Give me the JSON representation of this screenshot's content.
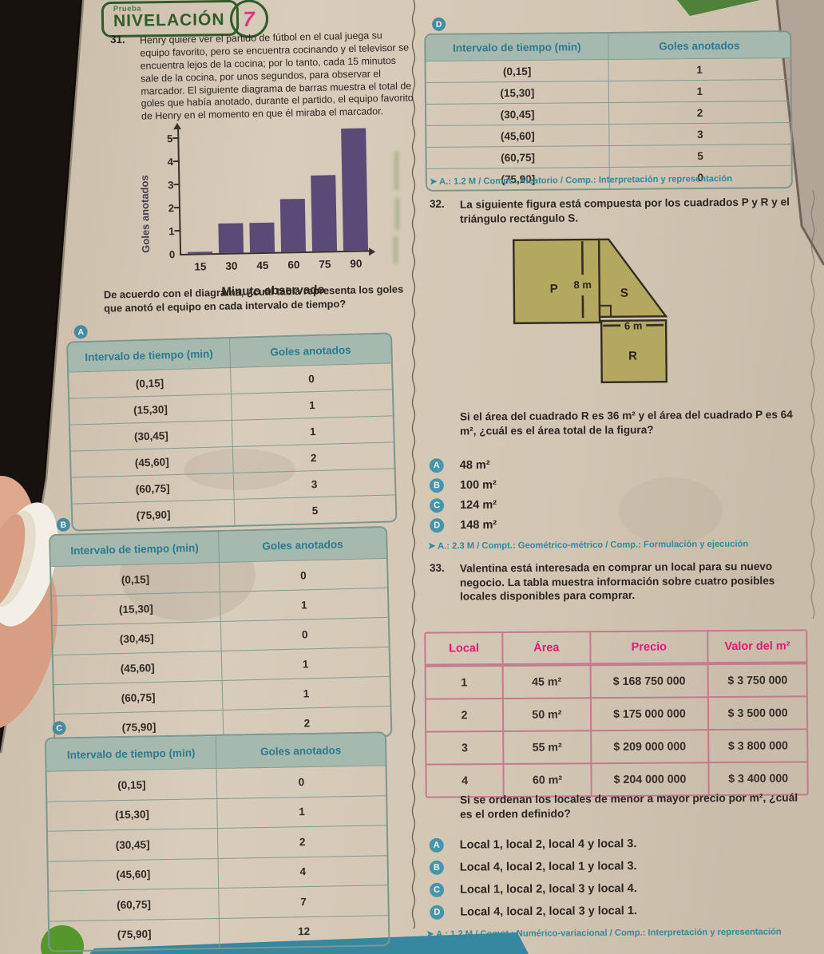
{
  "badge": {
    "kicker": "Prueba",
    "title": "NIVELACIÓN",
    "number": "7"
  },
  "q31": {
    "number": "31.",
    "text": "Henry quiere ver el partido de fútbol en el cual juega su equipo favorito, pero se encuentra cocinando y el televisor se encuentra lejos de la cocina; por lo tanto, cada 15 minutos sale de la cocina, por unos segundos, para observar el marcador. El siguiente diagrama de barras muestra el total de goles que había anotado, durante el partido, el equipo favorito de Henry en el momento en que él miraba el marcador.",
    "question": "De acuerdo con el diagrama, ¿cuál tabla representa los goles que anotó el equipo en cada intervalo de tiempo?",
    "footer": "➤ A.: 1.2 M / Compt.: Aleatorio / Comp.: Interpretación y representación"
  },
  "chart_data": {
    "type": "bar",
    "title": "",
    "categories": [
      "15",
      "30",
      "45",
      "60",
      "75",
      "90"
    ],
    "values": [
      0,
      1,
      1,
      2,
      3,
      5
    ],
    "xlabel": "Minuto observado",
    "ylabel": "Goles anotados",
    "ylim": [
      0,
      5
    ],
    "yticks": [
      0,
      1,
      2,
      3,
      4,
      5
    ],
    "grid": false,
    "legend": false,
    "bar_color": "#5a4a78"
  },
  "interval_tables": {
    "col_headers": [
      "Intervalo de tiempo (min)",
      "Goles anotados"
    ],
    "intervals": [
      "(0,15]",
      "(15,30]",
      "(30,45]",
      "(45,60]",
      "(60,75]",
      "(75,90]"
    ],
    "options": [
      {
        "label": "A",
        "goles": [
          "0",
          "1",
          "1",
          "2",
          "3",
          "5"
        ]
      },
      {
        "label": "B",
        "goles": [
          "0",
          "1",
          "0",
          "1",
          "1",
          "2"
        ]
      },
      {
        "label": "C",
        "goles": [
          "0",
          "1",
          "2",
          "4",
          "7",
          "12"
        ]
      },
      {
        "label": "D",
        "goles": [
          "1",
          "1",
          "2",
          "3",
          "5",
          "0"
        ]
      }
    ]
  },
  "q32": {
    "number": "32.",
    "text": "La siguiente figura está compuesta por los cuadrados P y R y el triángulo rectángulo S.",
    "figure": {
      "label_p": "P",
      "label_s": "S",
      "label_r": "R",
      "dim_vertical": "8 m",
      "dim_horizontal": "6 m",
      "fill_color": "#b4a75f"
    },
    "question": "Si el área del cuadrado R es 36 m² y el área del cuadrado P es 64 m², ¿cuál es el área total de la figura?",
    "options": [
      {
        "label": "A",
        "text": "48 m²"
      },
      {
        "label": "B",
        "text": "100 m²"
      },
      {
        "label": "C",
        "text": "124 m²"
      },
      {
        "label": "D",
        "text": "148 m²"
      }
    ],
    "footer": "➤ A.: 2.3 M / Compt.: Geométrico-métrico / Comp.: Formulación y ejecución"
  },
  "q33": {
    "number": "33.",
    "text": "Valentina está interesada en comprar un local para su nuevo negocio. La tabla muestra información sobre cuatro posibles locales disponibles para comprar.",
    "table": {
      "headers": [
        "Local",
        "Área",
        "Precio",
        "Valor del m²"
      ],
      "rows": [
        [
          "1",
          "45 m²",
          "$ 168 750 000",
          "$ 3 750 000"
        ],
        [
          "2",
          "50 m²",
          "$ 175 000 000",
          "$ 3 500 000"
        ],
        [
          "3",
          "55 m²",
          "$ 209 000 000",
          "$ 3 800 000"
        ],
        [
          "4",
          "60 m²",
          "$ 204 000 000",
          "$ 3 400 000"
        ]
      ]
    },
    "question": "Si se ordenan los locales de menor a mayor precio por m², ¿cuál es el orden definido?",
    "options": [
      {
        "label": "A",
        "text": "Local 1, local 2, local 4 y local 3."
      },
      {
        "label": "B",
        "text": "Local 4, local 2, local 1 y local 3."
      },
      {
        "label": "C",
        "text": "Local 1, local 2, local 3 y local 4."
      },
      {
        "label": "D",
        "text": "Local 4, local 2, local 3 y local 1."
      }
    ],
    "footer": "➤ A.: 1.2 M / Compt.: Numérico-variacional / Comp.: Interpretación y representación"
  },
  "colors": {
    "title_green": "#2f5c28",
    "badge_pink": "#e03488",
    "table_header_text": "#2d7a8e",
    "table_header_bg": "#a6b9af",
    "table_border": "#7b988f",
    "pink_header_text": "#e21a77",
    "pink_border": "#c5798f",
    "marker_teal": "#468ba3",
    "meta_teal": "#2e8aa1",
    "bar_purple": "#5a4a78",
    "figure_olive": "#b4a75f",
    "page_beige": "#d3c7b4"
  }
}
